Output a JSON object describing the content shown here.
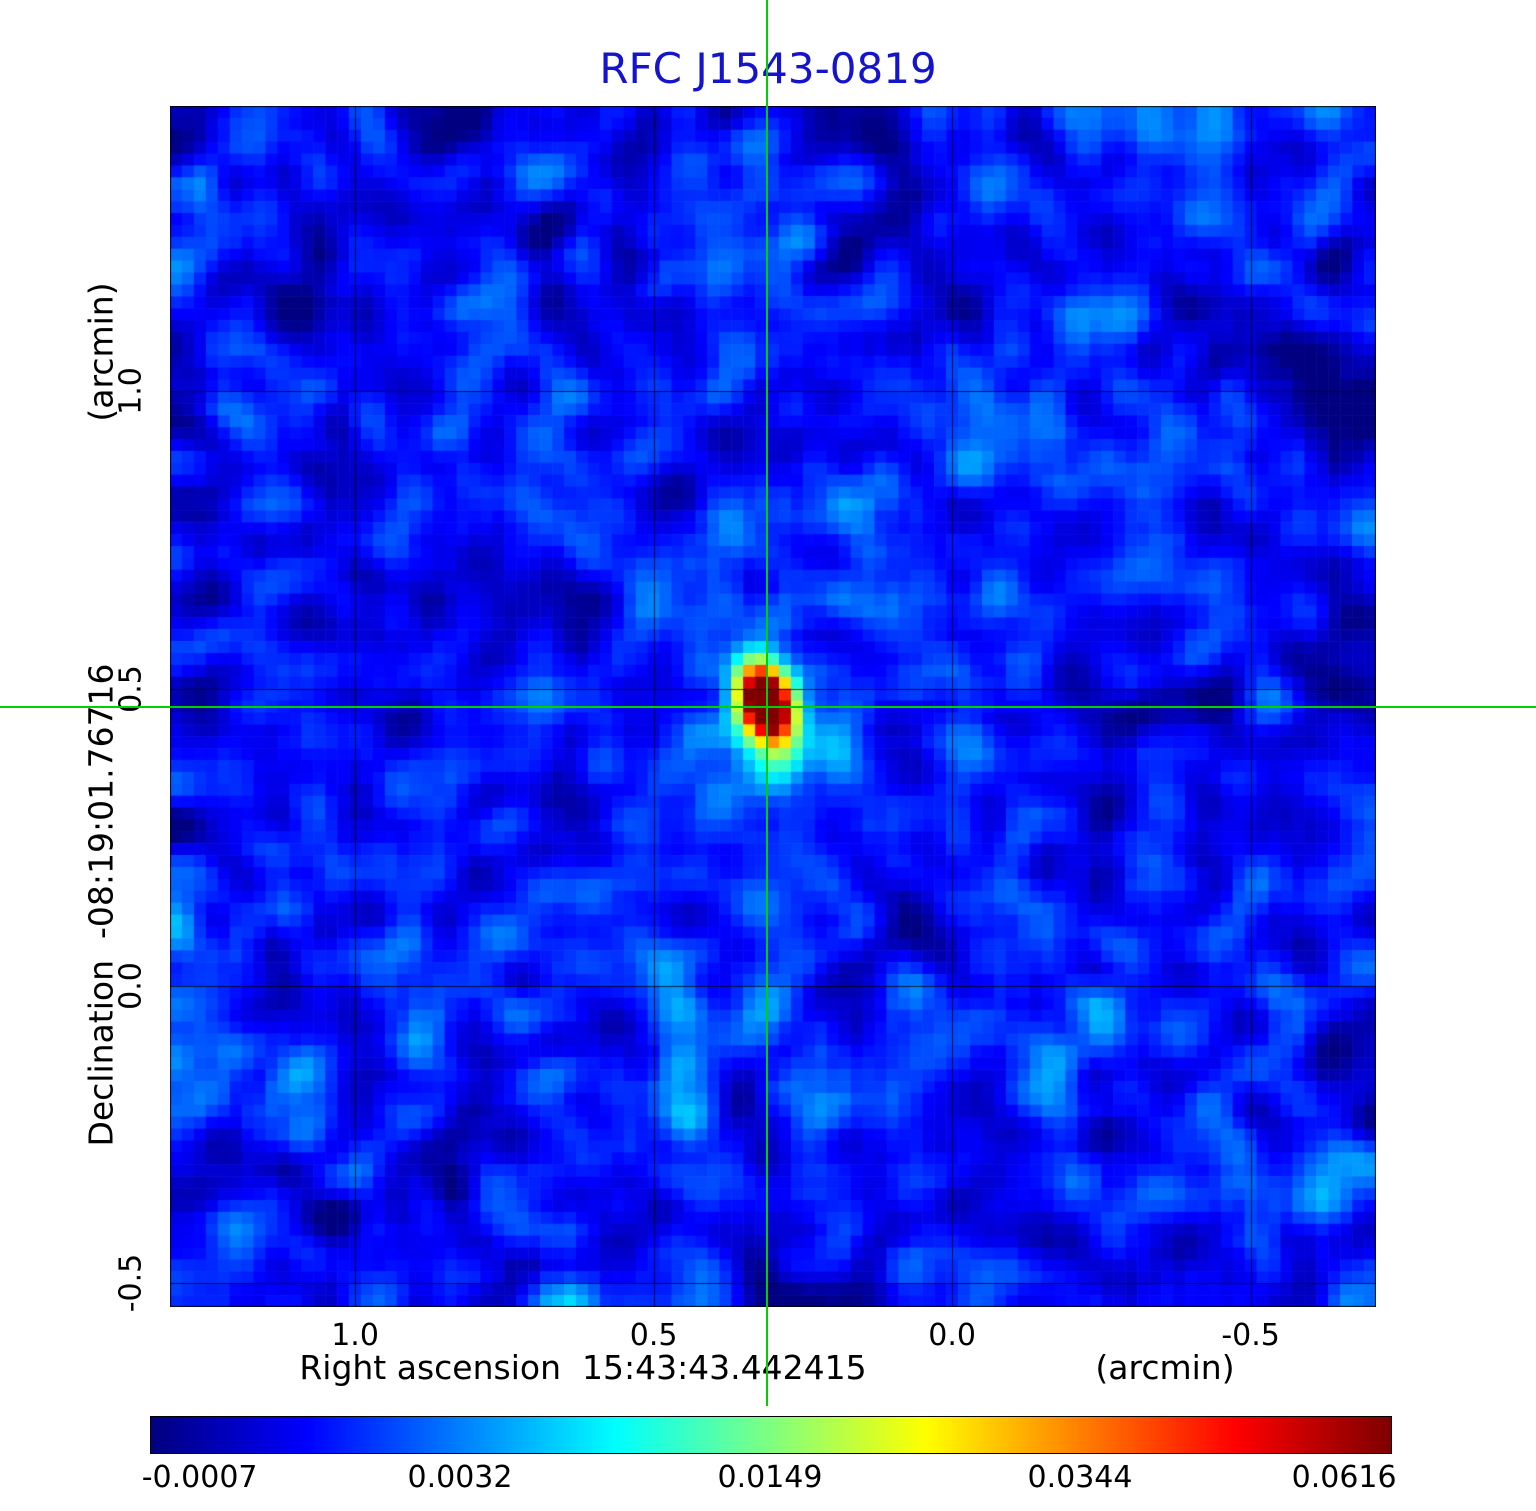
{
  "title": "RFC J1543-0819",
  "chart_data": {
    "type": "heatmap",
    "title": "RFC J1543-0819",
    "xlabel": "Right ascension  15:43:43.442415",
    "xunit": "(arcmin)",
    "ylabel": "Declination  -08:19:01.76716",
    "yunit": "(arcmin)",
    "x_tick_labels": [
      "1.0",
      "0.5",
      "0.0",
      "-0.5"
    ],
    "x_tick_values": [
      1.0,
      0.5,
      0.0,
      -0.5
    ],
    "y_tick_labels": [
      "1.0",
      "0.5",
      "0.0",
      "-0.5"
    ],
    "y_tick_values": [
      1.0,
      0.5,
      0.0,
      -0.5
    ],
    "x_range_arcmin": [
      1.31,
      -0.71
    ],
    "y_range_arcmin": [
      -0.54,
      1.48
    ],
    "grid": true,
    "source": {
      "x_arcmin": 0.31,
      "y_arcmin": 0.47,
      "peak_value": 0.0616,
      "marker": "green-crosshair"
    },
    "colorbar": {
      "colormap": "jet",
      "labels": [
        "-0.0007",
        "0.0032",
        "0.0149",
        "0.0344",
        "0.0616"
      ],
      "values": [
        -0.0007,
        0.0032,
        0.0149,
        0.0344,
        0.0616
      ]
    },
    "colors": {
      "title": "#1414cd",
      "crosshair": "#00cf00",
      "grid_line": "#000000",
      "background": "#ffffff"
    }
  }
}
